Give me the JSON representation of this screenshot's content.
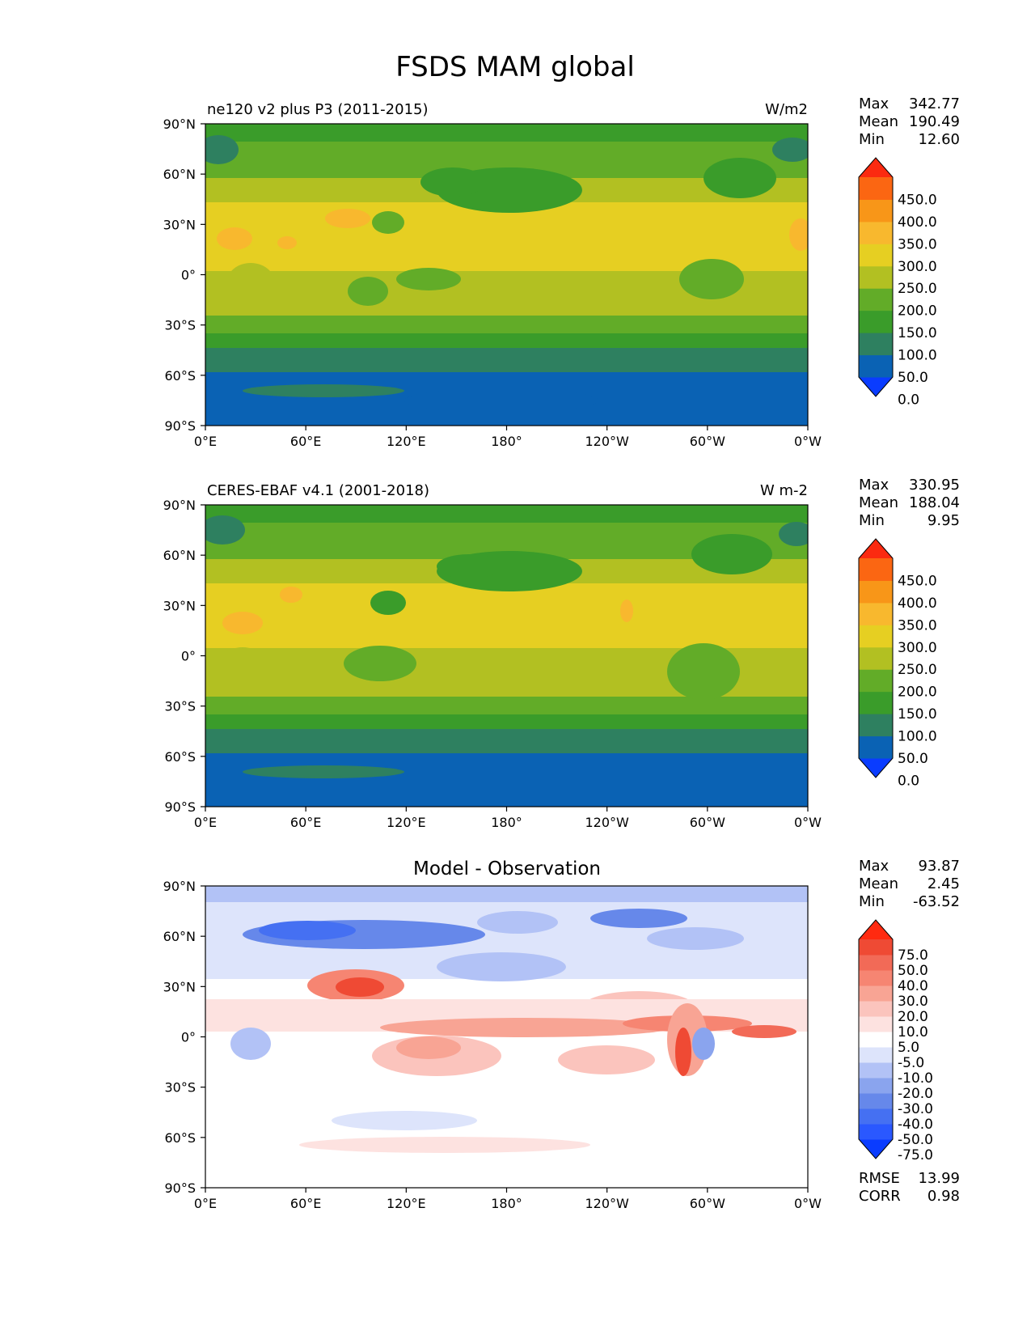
{
  "title": "FSDS MAM global",
  "axis_ticks": {
    "lon": [
      "0°E",
      "60°E",
      "120°E",
      "180°",
      "120°W",
      "60°W",
      "0°W"
    ],
    "lat": [
      "90°N",
      "60°N",
      "30°N",
      "0°",
      "30°S",
      "60°S",
      "90°S"
    ]
  },
  "stat_labels": {
    "max": "Max",
    "mean": "Mean",
    "min": "Min",
    "rmse": "RMSE",
    "corr": "CORR"
  },
  "panels": [
    {
      "left_title": "ne120 v2 plus P3 (2011-2015)",
      "center_title": "",
      "units": "W/m2",
      "stats": {
        "max": "342.77",
        "mean": "190.49",
        "min": "12.60"
      }
    },
    {
      "left_title": "CERES-EBAF v4.1 (2001-2018)",
      "center_title": "",
      "units": "W m-2",
      "stats": {
        "max": "330.95",
        "mean": "188.04",
        "min": "9.95"
      }
    },
    {
      "left_title": "",
      "center_title": "Model - Observation",
      "units": "",
      "stats": {
        "max": "93.87",
        "mean": "2.45",
        "min": "-63.52"
      },
      "metrics": {
        "rmse": "13.99",
        "corr": "0.98"
      }
    }
  ],
  "colorbars": {
    "fields": {
      "labels": [
        "450.0",
        "400.0",
        "350.0",
        "300.0",
        "250.0",
        "200.0",
        "150.0",
        "100.0",
        "50.0",
        "0.0"
      ],
      "colors_bottom_to_top": [
        "#0a3cff",
        "#0a62b4",
        "#2e8060",
        "#3a9c2a",
        "#62ac28",
        "#b2c022",
        "#e6cf22",
        "#f8b82e",
        "#f89618",
        "#fb6612",
        "#fb2a10"
      ]
    },
    "diff": {
      "labels": [
        "75.0",
        "50.0",
        "40.0",
        "30.0",
        "20.0",
        "10.0",
        "5.0",
        "-5.0",
        "-10.0",
        "-20.0",
        "-30.0",
        "-40.0",
        "-50.0",
        "-75.0"
      ],
      "colors_bottom_to_top": [
        "#0a3cff",
        "#2a58ff",
        "#4570f2",
        "#6688ea",
        "#8aa4ee",
        "#b2c2f6",
        "#dde4fb",
        "#ffffff",
        "#fde2e0",
        "#fbc4bd",
        "#f8a494",
        "#f68572",
        "#f26a57",
        "#ef4a34",
        "#ff2a10"
      ]
    }
  },
  "chart_data": [
    {
      "type": "heatmap",
      "title": "ne120 v2 plus P3 (2011-2015)",
      "units": "W/m2",
      "xlabel": "",
      "ylabel": "",
      "xlim": [
        0,
        360
      ],
      "ylim": [
        -90,
        90
      ],
      "levels": [
        0,
        50,
        100,
        150,
        200,
        250,
        300,
        350,
        400,
        450
      ],
      "zonal_mean_profile": {
        "lat": [
          85,
          70,
          55,
          40,
          25,
          10,
          0,
          -10,
          -25,
          -40,
          -52,
          -65,
          -80
        ],
        "value": [
          110,
          150,
          175,
          210,
          265,
          260,
          240,
          245,
          230,
          180,
          120,
          30,
          20
        ]
      },
      "stats": {
        "max": 342.77,
        "mean": 190.49,
        "min": 12.6
      }
    },
    {
      "type": "heatmap",
      "title": "CERES-EBAF v4.1 (2001-2018)",
      "units": "W m-2",
      "xlabel": "",
      "ylabel": "",
      "xlim": [
        0,
        360
      ],
      "ylim": [
        -90,
        90
      ],
      "levels": [
        0,
        50,
        100,
        150,
        200,
        250,
        300,
        350,
        400,
        450
      ],
      "zonal_mean_profile": {
        "lat": [
          85,
          70,
          55,
          40,
          25,
          10,
          0,
          -10,
          -25,
          -40,
          -52,
          -65,
          -80
        ],
        "value": [
          110,
          145,
          170,
          205,
          260,
          250,
          235,
          240,
          225,
          175,
          115,
          30,
          20
        ]
      },
      "stats": {
        "max": 330.95,
        "mean": 188.04,
        "min": 9.95
      }
    },
    {
      "type": "heatmap",
      "title": "Model - Observation",
      "xlabel": "",
      "ylabel": "",
      "xlim": [
        0,
        360
      ],
      "ylim": [
        -90,
        90
      ],
      "levels": [
        -75,
        -50,
        -40,
        -30,
        -20,
        -10,
        -5,
        5,
        10,
        20,
        30,
        40,
        50,
        75
      ],
      "stats": {
        "max": 93.87,
        "mean": 2.45,
        "min": -63.52
      },
      "rmse": 13.99,
      "corr": 0.98
    }
  ]
}
